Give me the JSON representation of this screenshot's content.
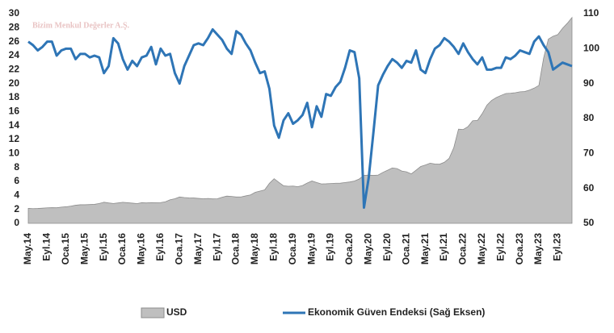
{
  "chart_data": {
    "type": "combo",
    "watermark": "Bizim Menkul Değerler A.Ş.",
    "categories": [
      "May.14",
      null,
      null,
      null,
      "Eyl.14",
      null,
      null,
      null,
      "Oca.15",
      null,
      null,
      null,
      "May.15",
      null,
      null,
      null,
      "Eyl.15",
      null,
      null,
      null,
      "Oca.16",
      null,
      null,
      null,
      "May.16",
      null,
      null,
      null,
      "Eyl.16",
      null,
      null,
      null,
      "Oca.17",
      null,
      null,
      null,
      "May.17",
      null,
      null,
      null,
      "Eyl.17",
      null,
      null,
      null,
      "Oca.18",
      null,
      null,
      null,
      "May.18",
      null,
      null,
      null,
      "Eyl.18",
      null,
      null,
      null,
      "Oca.19",
      null,
      null,
      null,
      "May.19",
      null,
      null,
      null,
      "Eyl.19",
      null,
      null,
      null,
      "Oca.20",
      null,
      null,
      null,
      "May.20",
      null,
      null,
      null,
      "Eyl.20",
      null,
      null,
      null,
      "Oca.21",
      null,
      null,
      null,
      "May.21",
      null,
      null,
      null,
      "Eyl.21",
      null,
      null,
      null,
      "Oca.22",
      null,
      null,
      null,
      "May.22",
      null,
      null,
      null,
      "Eyl.22",
      null,
      null,
      null,
      "Oca.23",
      null,
      null,
      null,
      "May.23",
      null,
      null,
      null,
      "Eyl.23",
      null,
      null,
      null
    ],
    "series": [
      {
        "name": "USD",
        "type": "area",
        "axis": "y",
        "color": "#bfbfbf",
        "values": [
          2.14,
          2.11,
          2.13,
          2.17,
          2.22,
          2.24,
          2.23,
          2.32,
          2.37,
          2.47,
          2.59,
          2.66,
          2.66,
          2.69,
          2.72,
          2.84,
          3.02,
          2.92,
          2.84,
          2.92,
          3.01,
          2.95,
          2.89,
          2.83,
          2.95,
          2.92,
          2.97,
          2.96,
          2.97,
          3.09,
          3.38,
          3.52,
          3.77,
          3.69,
          3.65,
          3.63,
          3.57,
          3.52,
          3.56,
          3.5,
          3.52,
          3.73,
          3.9,
          3.85,
          3.77,
          3.78,
          3.93,
          4.07,
          4.44,
          4.62,
          4.79,
          5.72,
          6.39,
          5.86,
          5.37,
          5.31,
          5.34,
          5.25,
          5.41,
          5.77,
          6.06,
          5.84,
          5.64,
          5.66,
          5.7,
          5.74,
          5.75,
          5.84,
          5.92,
          6.06,
          6.35,
          6.87,
          6.9,
          6.86,
          6.91,
          7.29,
          7.6,
          7.93,
          7.83,
          7.49,
          7.37,
          7.08,
          7.6,
          8.13,
          8.35,
          8.61,
          8.49,
          8.46,
          8.74,
          9.29,
          10.83,
          13.48,
          13.43,
          13.84,
          14.68,
          14.72,
          15.69,
          16.91,
          17.59,
          18.0,
          18.31,
          18.58,
          18.62,
          18.69,
          18.82,
          18.86,
          19.07,
          19.35,
          19.74,
          23.66,
          26.37,
          26.77,
          27.01,
          27.91,
          28.62,
          29.45
        ]
      },
      {
        "name": "Ekonomik Güven Endeksi (Sağ Eksen)",
        "type": "line",
        "axis": "y2",
        "color": "#2e75b6",
        "values": [
          102,
          101,
          99.5,
          100.5,
          102,
          102,
          98,
          99.5,
          100,
          100,
          97,
          98.5,
          98.5,
          97.5,
          98,
          97.5,
          93,
          95,
          103,
          101.5,
          97,
          94,
          96.5,
          95,
          97.5,
          98,
          100.5,
          95.5,
          100,
          98,
          98.5,
          93,
          90,
          95,
          98,
          101,
          101.5,
          101,
          103,
          105.5,
          104,
          102.5,
          100,
          98.5,
          105,
          104,
          101.5,
          99.5,
          96,
          93,
          93.5,
          88.5,
          78,
          74.5,
          79.5,
          81.5,
          78.5,
          79.5,
          81,
          84.5,
          77.5,
          83.5,
          80.5,
          87,
          86.5,
          89,
          90.5,
          94.5,
          99.5,
          99,
          91.5,
          54.5,
          63,
          76,
          89.5,
          92.5,
          95,
          97,
          96,
          94.5,
          96.5,
          96,
          99.5,
          94,
          93,
          97,
          100,
          101,
          103,
          102,
          100.5,
          98.5,
          101.5,
          99,
          97,
          95.5,
          97.5,
          94,
          94,
          94.5,
          94.5,
          97.5,
          97,
          98,
          99.5,
          99,
          98.5,
          102,
          103.5,
          101,
          99,
          94,
          95,
          96,
          95.5,
          95
        ]
      }
    ],
    "ylim": [
      0,
      30
    ],
    "yticks": [
      0,
      2,
      4,
      6,
      8,
      10,
      12,
      14,
      16,
      18,
      20,
      22,
      24,
      26,
      28,
      30
    ],
    "y2lim": [
      50,
      110
    ],
    "y2ticks": [
      50,
      60,
      70,
      80,
      90,
      100,
      110
    ],
    "legend": "bottom"
  }
}
